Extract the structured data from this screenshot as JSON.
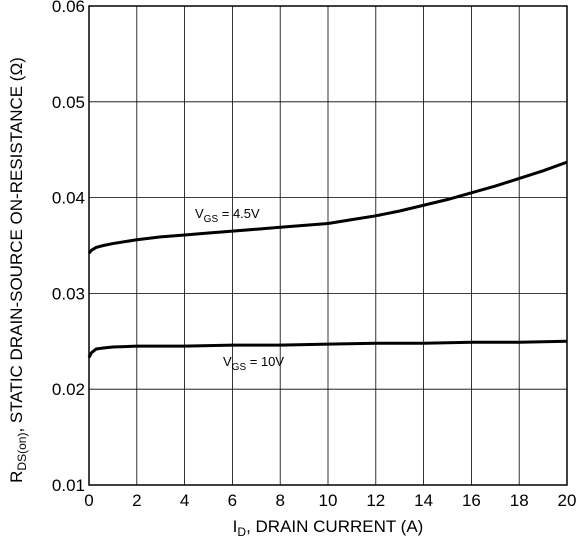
{
  "chart_data": {
    "type": "line",
    "xlabel": {
      "main": "I",
      "sub": "D",
      "rest": ", DRAIN CURRENT (A)"
    },
    "ylabel": {
      "main": "R",
      "sub": "DS(on)",
      "rest": ", STATIC DRAIN-SOURCE ON-RESISTANCE (Ω)"
    },
    "xlim": [
      0,
      20
    ],
    "ylim": [
      0.01,
      0.06
    ],
    "x_ticks": [
      0,
      2,
      4,
      6,
      8,
      10,
      12,
      14,
      16,
      18,
      20
    ],
    "y_ticks": [
      0.01,
      0.02,
      0.03,
      0.04,
      0.05,
      0.06
    ],
    "y_tick_labels": [
      "0.01",
      "0.02",
      "0.03",
      "0.04",
      "0.05",
      "0.06"
    ],
    "grid": true,
    "series": [
      {
        "name": "VGS = 4.5V",
        "label": {
          "main": "V",
          "sub": "GS",
          "rest": " = 4.5V"
        },
        "x": [
          0,
          0.1,
          0.3,
          0.6,
          1,
          2,
          3,
          4,
          5,
          6,
          7,
          8,
          9,
          10,
          11,
          12,
          13,
          14,
          15,
          16,
          17,
          18,
          19,
          20
        ],
        "y": [
          0.0342,
          0.0345,
          0.0348,
          0.035,
          0.0352,
          0.0356,
          0.0359,
          0.0361,
          0.0363,
          0.0365,
          0.0367,
          0.0369,
          0.0371,
          0.0373,
          0.0377,
          0.0381,
          0.0386,
          0.0392,
          0.0398,
          0.0405,
          0.0412,
          0.042,
          0.0428,
          0.0437
        ]
      },
      {
        "name": "VGS = 10V",
        "label": {
          "main": "V",
          "sub": "GS",
          "rest": " = 10V"
        },
        "x": [
          0,
          0.1,
          0.3,
          0.6,
          1,
          2,
          4,
          6,
          8,
          10,
          12,
          14,
          16,
          18,
          20
        ],
        "y": [
          0.0233,
          0.0238,
          0.0242,
          0.0243,
          0.0244,
          0.0245,
          0.0245,
          0.0246,
          0.0246,
          0.0247,
          0.0248,
          0.0248,
          0.0249,
          0.0249,
          0.025
        ]
      }
    ]
  }
}
